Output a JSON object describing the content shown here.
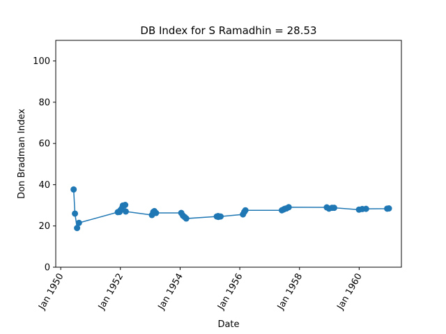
{
  "chart_data": {
    "type": "line",
    "title": "DB Index for S Ramadhin = 28.53",
    "xlabel": "Date",
    "ylabel": "Don Bradman Index",
    "ylim": [
      0,
      110
    ],
    "xlim": [
      "1949-11-01",
      "1961-06-01"
    ],
    "yticks": [
      0,
      20,
      40,
      60,
      80,
      100
    ],
    "xticks": [
      {
        "date": "1950-01-01",
        "label": "Jan 1950"
      },
      {
        "date": "1952-01-01",
        "label": "Jan 1952"
      },
      {
        "date": "1954-01-01",
        "label": "Jan 1954"
      },
      {
        "date": "1956-01-01",
        "label": "Jan 1956"
      },
      {
        "date": "1958-01-01",
        "label": "Jan 1958"
      },
      {
        "date": "1960-01-01",
        "label": "Jan 1960"
      }
    ],
    "grid": false,
    "marker": "circle",
    "color": "#1f77b4",
    "series": [
      {
        "x": [
          "1950-06-08",
          "1950-06-24",
          "1950-07-20",
          "1950-08-12",
          "1951-11-30",
          "1951-12-22",
          "1952-01-01",
          "1952-01-17",
          "1952-01-31",
          "1952-02-29",
          "1952-03-07",
          "1953-01-21",
          "1953-02-07",
          "1953-02-20",
          "1953-03-12",
          "1954-01-15",
          "1954-02-05",
          "1954-02-26",
          "1954-03-17",
          "1955-03-26",
          "1955-04-11",
          "1955-04-14",
          "1955-05-11",
          "1956-02-09",
          "1956-02-25",
          "1956-03-10",
          "1957-05-30",
          "1957-06-20",
          "1957-07-04",
          "1957-07-25",
          "1957-08-22",
          "1958-12-01",
          "1958-12-28",
          "1959-02-03",
          "1959-03-01",
          "1959-12-30",
          "1960-02-08",
          "1960-03-25",
          "1960-12-09",
          "1960-12-30"
        ],
        "y": [
          37.7,
          26.0,
          19.0,
          21.5,
          26.7,
          26.8,
          27.6,
          28.4,
          29.9,
          30.2,
          27.0,
          25.3,
          26.8,
          27.2,
          26.3,
          26.3,
          25.0,
          24.3,
          23.6,
          24.6,
          24.8,
          24.4,
          24.6,
          25.6,
          26.8,
          27.6,
          27.6,
          28.0,
          28.3,
          28.5,
          29.1,
          29.0,
          28.4,
          28.8,
          28.8,
          27.9,
          28.2,
          28.3,
          28.4,
          28.5
        ]
      }
    ]
  }
}
